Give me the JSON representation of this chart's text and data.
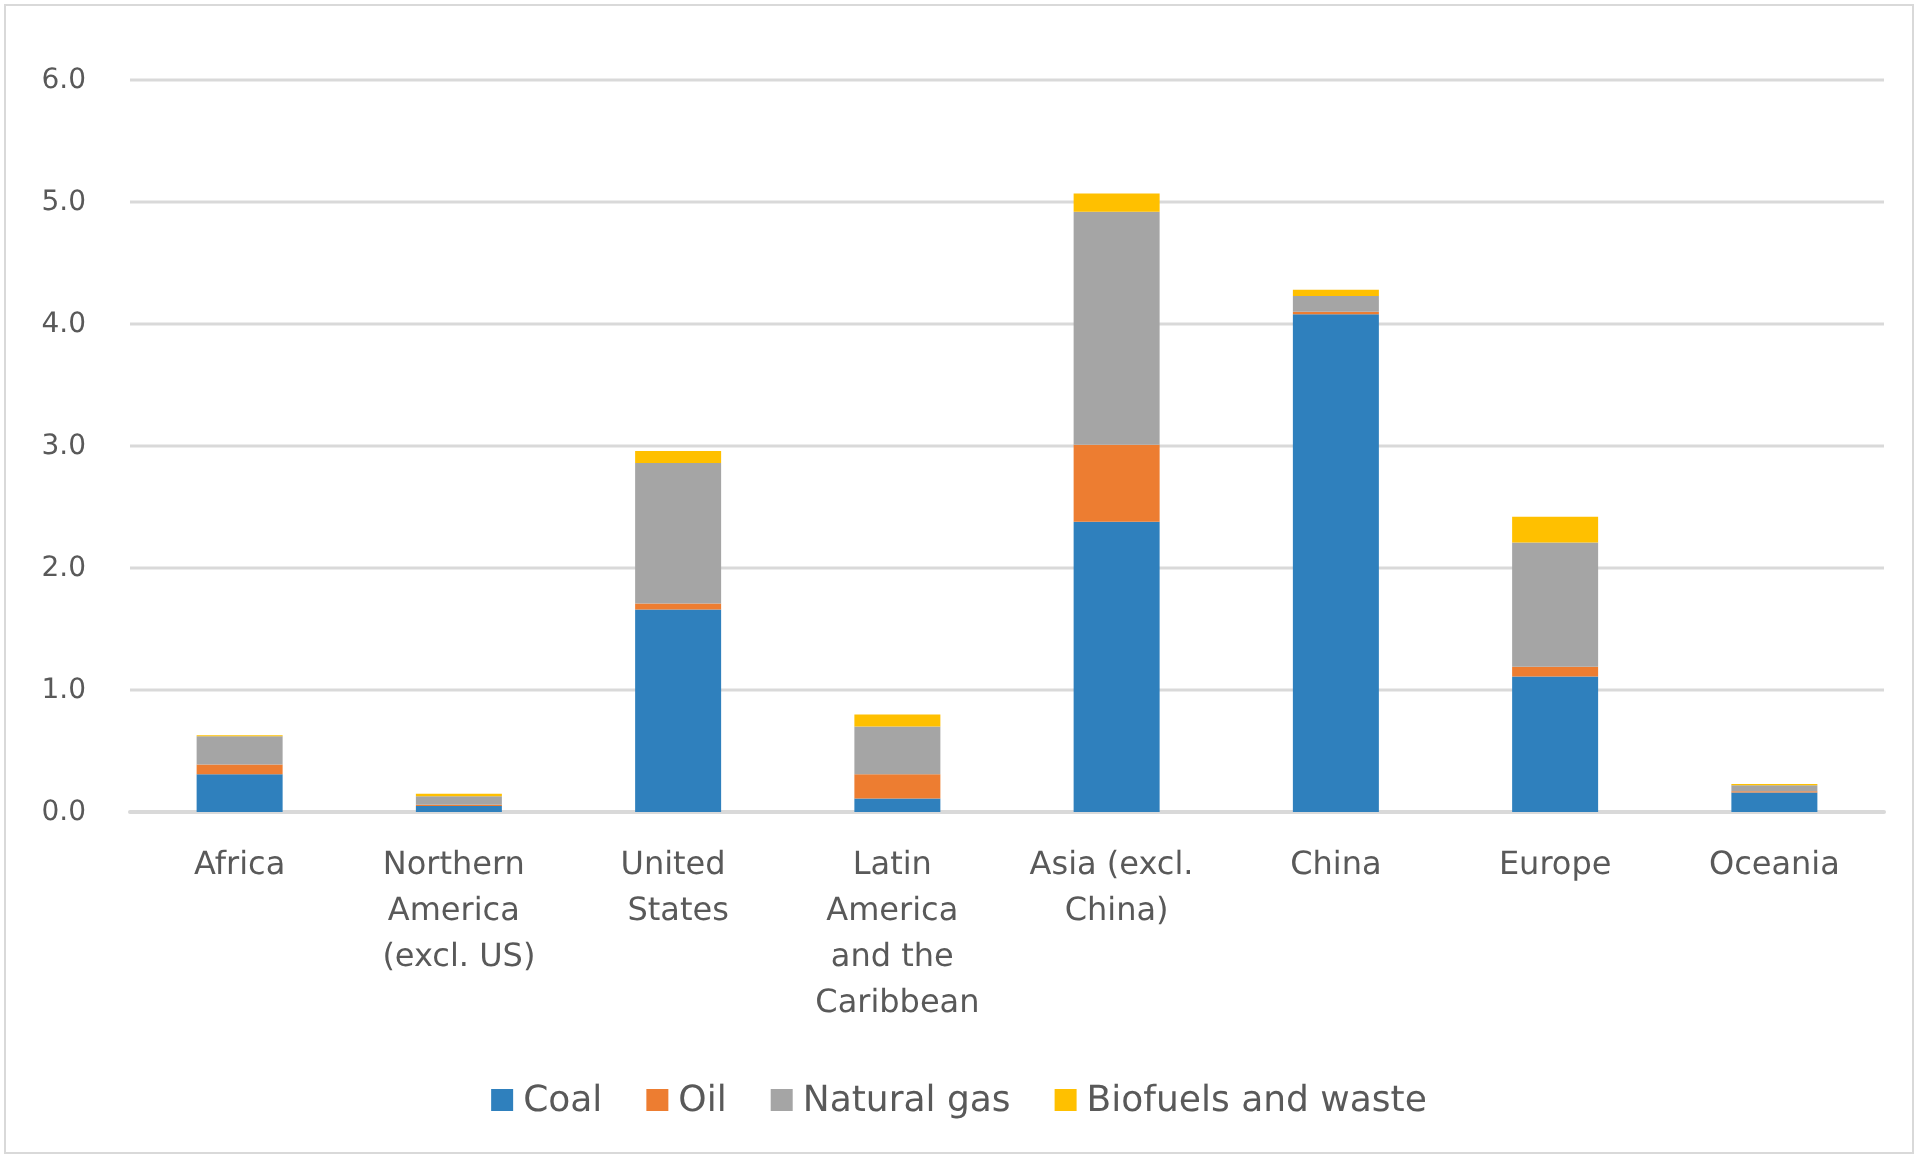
{
  "chart_data": {
    "type": "bar",
    "stacked": true,
    "categories": [
      "Africa",
      "Northern America (excl. US)",
      "United States",
      "Latin America and the Caribbean",
      "Asia (excl. China)",
      "China",
      "Europe",
      "Oceania"
    ],
    "series": [
      {
        "name": "Coal",
        "color": "#2f80bd",
        "values": [
          0.31,
          0.05,
          1.66,
          0.11,
          2.38,
          4.08,
          1.11,
          0.16
        ]
      },
      {
        "name": "Oil",
        "color": "#ed7d31",
        "values": [
          0.08,
          0.01,
          0.05,
          0.2,
          0.63,
          0.02,
          0.08,
          0.01
        ]
      },
      {
        "name": "Natural gas",
        "color": "#a5a5a5",
        "values": [
          0.23,
          0.07,
          1.15,
          0.39,
          1.91,
          0.13,
          1.02,
          0.05
        ]
      },
      {
        "name": "Biofuels and waste",
        "color": "#ffc000",
        "values": [
          0.01,
          0.02,
          0.1,
          0.1,
          0.15,
          0.05,
          0.21,
          0.01
        ]
      }
    ],
    "ylim": [
      0,
      6
    ],
    "yticks": [
      {
        "value": 0,
        "label": "0.0"
      },
      {
        "value": 1,
        "label": "1.0"
      },
      {
        "value": 2,
        "label": "2.0"
      },
      {
        "value": 3,
        "label": "3.0"
      },
      {
        "value": 4,
        "label": "4.0"
      },
      {
        "value": 5,
        "label": "5.0"
      },
      {
        "value": 6,
        "label": "6.0"
      }
    ],
    "grid": "y",
    "legend": "bottom"
  }
}
